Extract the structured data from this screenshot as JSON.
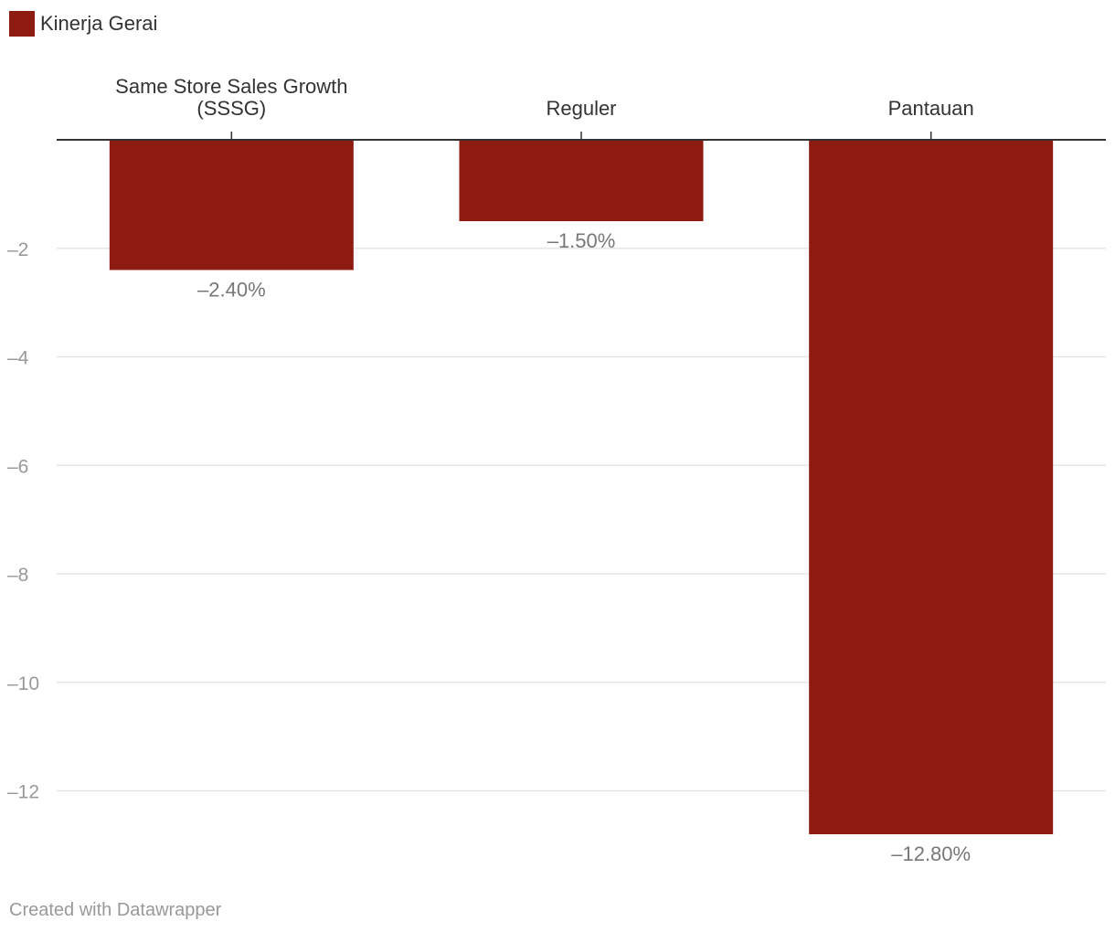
{
  "legend": {
    "label": "Kinerja Gerai",
    "color": "#8e1b12"
  },
  "footer": {
    "credit": "Created with Datawrapper"
  },
  "colors": {
    "bar": "#8e1b12",
    "grid": "#e6e6e6",
    "baseline": "#333333"
  },
  "chart_data": {
    "type": "bar",
    "orientation": "vertical",
    "categories": [
      [
        "Same Store Sales Growth",
        "(SSSG)"
      ],
      [
        "Reguler"
      ],
      [
        "Pantauan"
      ]
    ],
    "series": [
      {
        "name": "Kinerja Gerai",
        "values": [
          -2.4,
          -1.5,
          -12.8
        ],
        "value_labels": [
          "–2.40%",
          "–1.50%",
          "–12.80%"
        ]
      }
    ],
    "yticks": [
      -2,
      -4,
      -6,
      -8,
      -10,
      -12
    ],
    "ytick_labels": [
      "–2",
      "–4",
      "–6",
      "–8",
      "–10",
      "–12"
    ],
    "ylim": [
      -13,
      0
    ],
    "category_axis_position": "top",
    "grid": true,
    "legend_position": "top-left"
  }
}
